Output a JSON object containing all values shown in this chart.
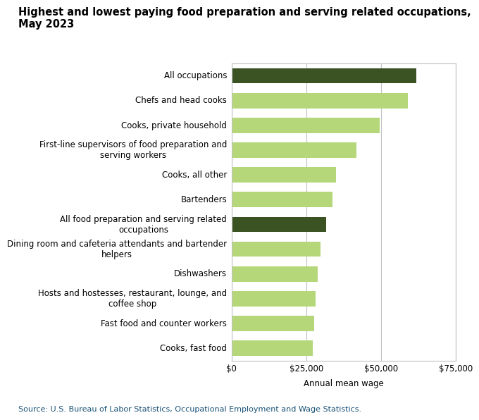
{
  "title_line1": "Highest and lowest paying food preparation and serving related occupations,",
  "title_line2": "May 2023",
  "categories": [
    "Cooks, fast food",
    "Fast food and counter workers",
    "Hosts and hostesses, restaurant, lounge, and\ncoffee shop",
    "Dishwashers",
    "Dining room and cafeteria attendants and bartender\nhelpers",
    "All food preparation and serving related\noccupations",
    "Bartenders",
    "Cooks, all other",
    "First-line supervisors of food preparation and\nserving workers",
    "Cooks, private household",
    "Chefs and head cooks",
    "All occupations"
  ],
  "values": [
    27100,
    27700,
    28200,
    28800,
    29800,
    31600,
    33800,
    34900,
    41800,
    49500,
    58900,
    61900
  ],
  "colors": [
    "#b5d77a",
    "#b5d77a",
    "#b5d77a",
    "#b5d77a",
    "#b5d77a",
    "#3b5323",
    "#b5d77a",
    "#b5d77a",
    "#b5d77a",
    "#b5d77a",
    "#b5d77a",
    "#3b5323"
  ],
  "xlabel": "Annual mean wage",
  "xlim": [
    0,
    75000
  ],
  "xticks": [
    0,
    25000,
    50000,
    75000
  ],
  "xticklabels": [
    "$0",
    "$25,000",
    "$50,000",
    "$75,000"
  ],
  "source": "Source: U.S. Bureau of Labor Statistics, Occupational Employment and Wage Statistics.",
  "background_color": "#ffffff",
  "grid_color": "#c0c0c0",
  "title_fontsize": 10.5,
  "label_fontsize": 8.5,
  "tick_fontsize": 8.5,
  "source_fontsize": 8,
  "source_color": "#1a5276"
}
